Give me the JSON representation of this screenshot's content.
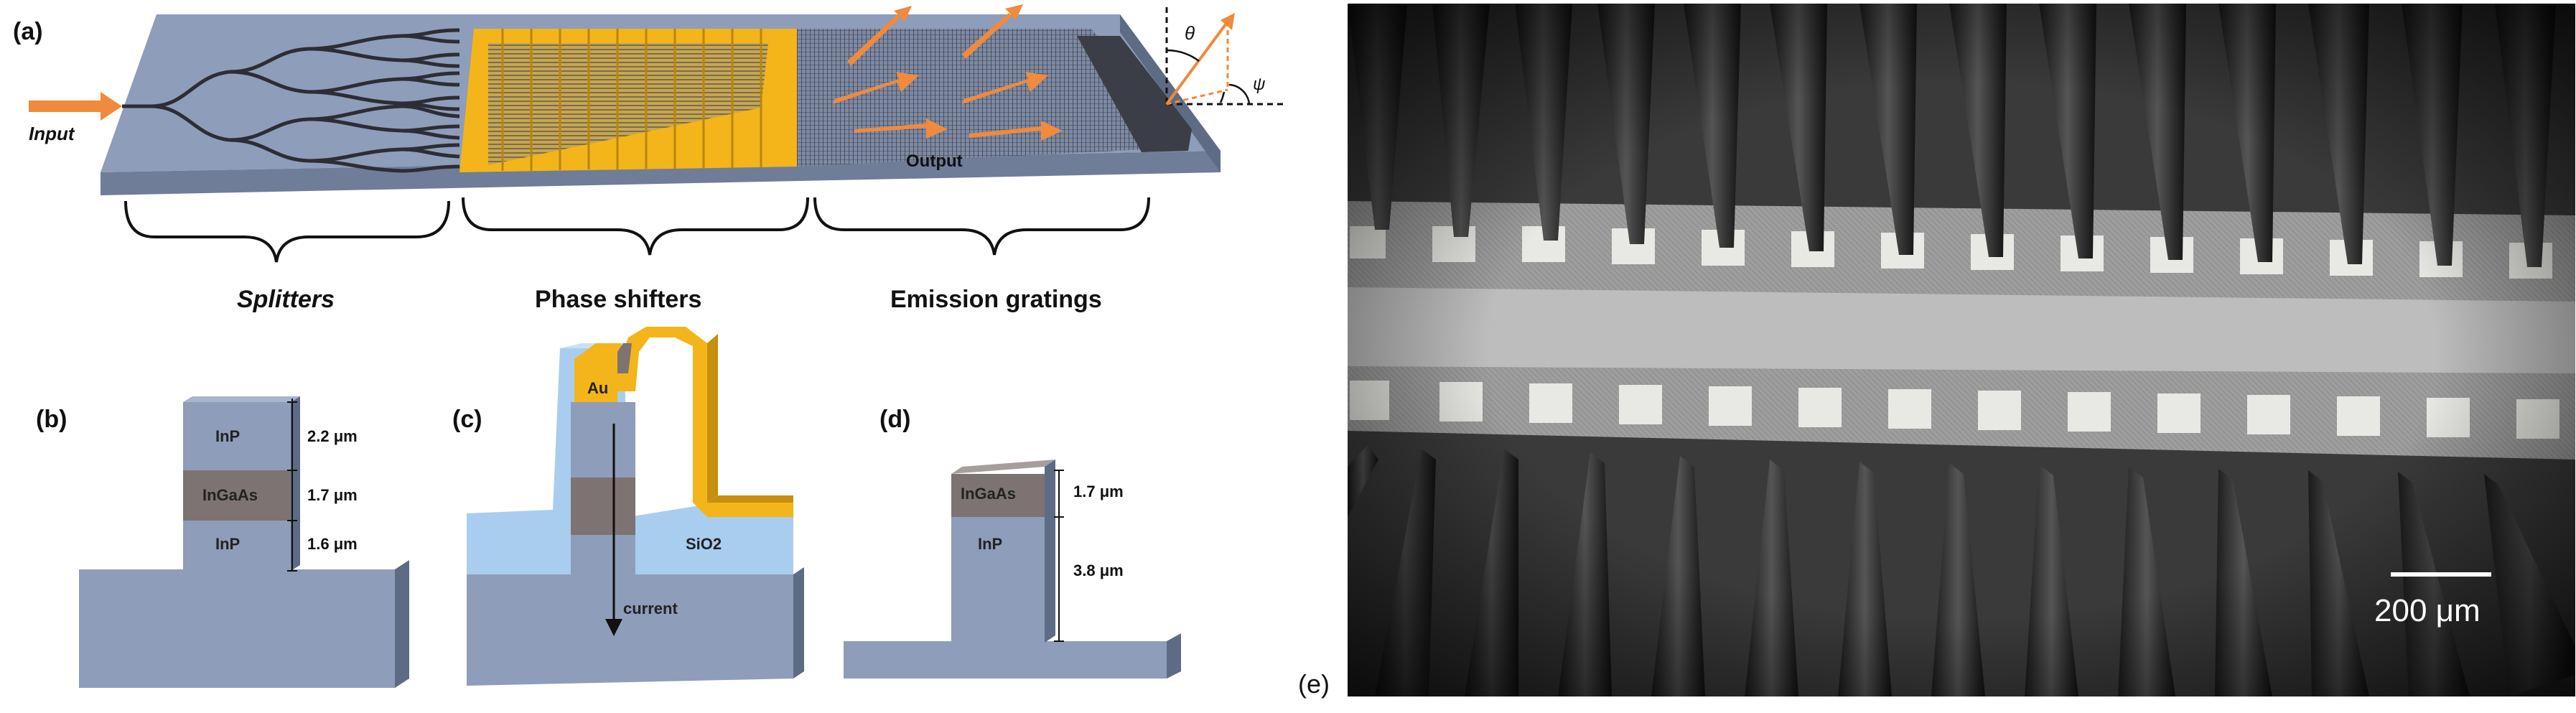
{
  "panels": {
    "a": {
      "tag": "(a)",
      "input_label": "Input",
      "output_label": "Output",
      "angle_theta": "θ",
      "angle_psi": "ψ",
      "sections": [
        "Splitters",
        "Phase shifters",
        "Emission gratings"
      ]
    },
    "b": {
      "tag": "(b)",
      "layers": [
        "InP",
        "InGaAs",
        "InP"
      ],
      "thicknesses": [
        "2.2 μm",
        "1.7 μm",
        "1.6 μm"
      ]
    },
    "c": {
      "tag": "(c)",
      "contact": "Au",
      "cladding": "SiO2",
      "current_label": "current"
    },
    "d": {
      "tag": "(d)",
      "layers": [
        "InGaAs",
        "InP"
      ],
      "thicknesses": [
        "1.7 μm",
        "3.8 μm"
      ]
    },
    "e": {
      "tag": "(e)",
      "scale_bar": "200 μm"
    }
  },
  "colors": {
    "substrate": "#8e9db9",
    "substrate_side": "#6f7d99",
    "gold": "#f3b519",
    "arrow": "#f08a3c",
    "oxide": "#a9cdef",
    "ingaas": "#7d7373"
  }
}
